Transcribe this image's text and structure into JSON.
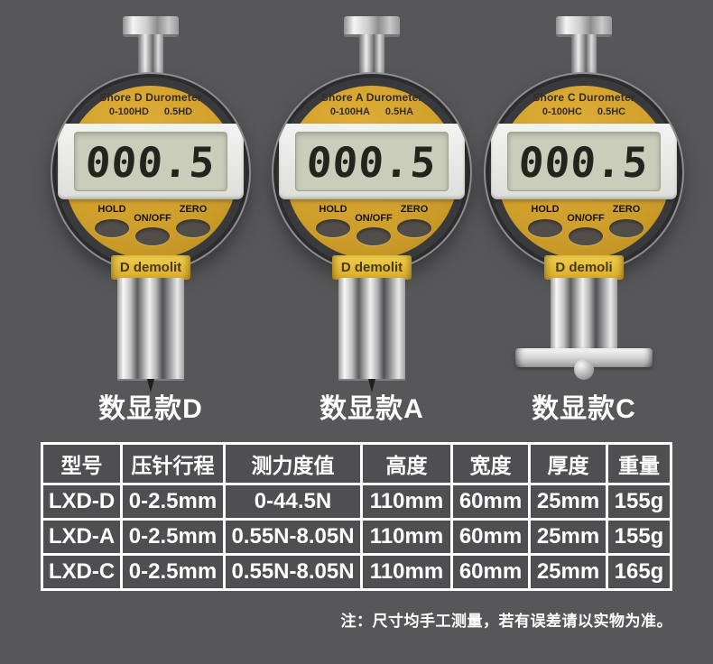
{
  "colors": {
    "background": "#57575a",
    "face_gold": "#d2a02a",
    "band_yellow": "#e8c63f",
    "lcd_green": "#c9cdb9",
    "table_cell": "#4f4f52",
    "table_border": "#ffffff",
    "text_light": "#ffffff"
  },
  "durometers": [
    {
      "variant": "D",
      "title": "Shore D Durometer",
      "range_left": "0-100HD",
      "range_right": "0.5HD",
      "display": "000.5",
      "buttons": {
        "hold": "HOLD",
        "onoff": "ON/OFF",
        "zero": "ZERO"
      },
      "band_text": "D demolit",
      "caption": "数显款D",
      "tip": "needle"
    },
    {
      "variant": "A",
      "title": "Shore A Durometer",
      "range_left": "0-100HA",
      "range_right": "0.5HA",
      "display": "000.5",
      "buttons": {
        "hold": "HOLD",
        "onoff": "ON/OFF",
        "zero": "ZERO"
      },
      "band_text": "D demolit",
      "caption": "数显款A",
      "tip": "needle"
    },
    {
      "variant": "C",
      "title": "Shore C Durometer",
      "range_left": "0-100HC",
      "range_right": "0.5HC",
      "display": "000.5",
      "buttons": {
        "hold": "HOLD",
        "onoff": "ON/OFF",
        "zero": "ZERO"
      },
      "band_text": "D demoli",
      "caption": "数显款C",
      "tip": "foot"
    }
  ],
  "spec_table": {
    "headers": [
      "型号",
      "压针行程",
      "测力度值",
      "高度",
      "宽度",
      "厚度",
      "重量"
    ],
    "rows": [
      [
        "LXD-D",
        "0-2.5mm",
        "0-44.5N",
        "110mm",
        "60mm",
        "25mm",
        "155g"
      ],
      [
        "LXD-A",
        "0-2.5mm",
        "0.55N-8.05N",
        "110mm",
        "60mm",
        "25mm",
        "155g"
      ],
      [
        "LXD-C",
        "0-2.5mm",
        "0.55N-8.05N",
        "110mm",
        "60mm",
        "25mm",
        "165g"
      ]
    ]
  },
  "note": "注：尺寸均手工测量，若有误差请以实物为准。"
}
